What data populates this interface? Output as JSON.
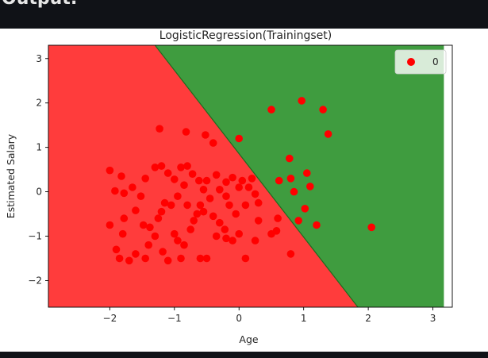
{
  "header": {
    "label": "Output:"
  },
  "chart_data": {
    "type": "scatter",
    "title": "LogisticRegression(Trainingset)",
    "xlabel": "Age",
    "ylabel": "Estimated Salary",
    "xlim": [
      -2.95,
      3.3
    ],
    "ylim": [
      -2.6,
      3.3
    ],
    "xticks": [
      -2,
      -1,
      0,
      1,
      2,
      3
    ],
    "yticks": [
      -2,
      -1,
      0,
      1,
      2,
      3
    ],
    "xtick_labels": [
      "−2",
      "−1",
      "0",
      "1",
      "2",
      "3"
    ],
    "ytick_labels": [
      "−2",
      "−1",
      "0",
      "1",
      "2",
      "3"
    ],
    "grid": false,
    "legend_position": "top-right",
    "decision_regions": {
      "class_0_color": "#ff3c3c",
      "class_1_color": "#3f9c3f",
      "boundary": [
        [
          -1.3,
          3.3
        ],
        [
          1.84,
          -2.6
        ]
      ],
      "green_extent_xmax": 3.17
    },
    "series": [
      {
        "name": "0",
        "color": "#ff0000",
        "points": [
          [
            2.05,
            -0.8
          ],
          [
            0.97,
            2.05
          ],
          [
            1.3,
            1.85
          ],
          [
            0.5,
            1.85
          ],
          [
            1.38,
            1.3
          ],
          [
            0.0,
            1.2
          ],
          [
            -1.23,
            1.42
          ],
          [
            -0.82,
            1.35
          ],
          [
            -0.52,
            1.28
          ],
          [
            -0.4,
            1.1
          ],
          [
            0.78,
            0.75
          ],
          [
            1.05,
            0.42
          ],
          [
            0.62,
            0.25
          ],
          [
            0.8,
            0.3
          ],
          [
            1.1,
            0.12
          ],
          [
            0.85,
            0.0
          ],
          [
            1.02,
            -0.38
          ],
          [
            0.92,
            -0.65
          ],
          [
            1.2,
            -0.75
          ],
          [
            0.58,
            -0.88
          ],
          [
            0.8,
            -1.4
          ],
          [
            -2.0,
            0.48
          ],
          [
            -1.82,
            0.35
          ],
          [
            -1.92,
            0.02
          ],
          [
            -1.78,
            -0.03
          ],
          [
            -1.65,
            0.1
          ],
          [
            -1.45,
            0.3
          ],
          [
            -1.52,
            -0.1
          ],
          [
            -1.6,
            -0.42
          ],
          [
            -1.78,
            -0.6
          ],
          [
            -2.0,
            -0.75
          ],
          [
            -1.8,
            -0.95
          ],
          [
            -1.9,
            -1.3
          ],
          [
            -1.85,
            -1.5
          ],
          [
            -1.6,
            -1.4
          ],
          [
            -1.7,
            -1.55
          ],
          [
            -1.48,
            -0.75
          ],
          [
            -1.38,
            -0.8
          ],
          [
            -1.4,
            -1.2
          ],
          [
            -1.45,
            -1.5
          ],
          [
            -1.3,
            -1.0
          ],
          [
            -1.18,
            -1.35
          ],
          [
            -1.1,
            -1.55
          ],
          [
            -1.2,
            -0.45
          ],
          [
            -1.15,
            -0.25
          ],
          [
            -1.3,
            0.55
          ],
          [
            -1.2,
            0.58
          ],
          [
            -1.1,
            0.42
          ],
          [
            -1.0,
            0.28
          ],
          [
            -0.9,
            0.55
          ],
          [
            -0.8,
            0.58
          ],
          [
            -0.72,
            0.4
          ],
          [
            -0.62,
            0.25
          ],
          [
            -0.55,
            0.05
          ],
          [
            -0.5,
            0.25
          ],
          [
            -1.0,
            -0.95
          ],
          [
            -0.95,
            -1.1
          ],
          [
            -0.9,
            -1.5
          ],
          [
            -0.85,
            -1.2
          ],
          [
            -0.7,
            -0.65
          ],
          [
            -0.65,
            -0.5
          ],
          [
            -0.6,
            -0.3
          ],
          [
            -0.8,
            -0.3
          ],
          [
            -0.6,
            -1.5
          ],
          [
            -0.5,
            -1.5
          ],
          [
            -0.4,
            -0.55
          ],
          [
            -0.35,
            -1.0
          ],
          [
            -0.3,
            -0.7
          ],
          [
            -0.22,
            -0.85
          ],
          [
            -0.3,
            0.05
          ],
          [
            -0.2,
            0.22
          ],
          [
            -0.1,
            0.32
          ],
          [
            -0.2,
            -0.1
          ],
          [
            -0.15,
            -0.3
          ],
          [
            -0.05,
            -0.5
          ],
          [
            0.0,
            0.1
          ],
          [
            0.05,
            0.25
          ],
          [
            0.1,
            -0.3
          ],
          [
            0.15,
            0.1
          ],
          [
            0.2,
            0.3
          ],
          [
            0.25,
            -0.05
          ],
          [
            0.3,
            -0.25
          ],
          [
            0.0,
            -0.95
          ],
          [
            -0.1,
            -1.1
          ],
          [
            -0.2,
            -1.05
          ],
          [
            0.3,
            -0.65
          ],
          [
            0.25,
            -1.1
          ],
          [
            0.1,
            -1.5
          ],
          [
            0.5,
            -0.95
          ],
          [
            0.6,
            -0.6
          ],
          [
            -0.85,
            0.15
          ],
          [
            -0.95,
            -0.1
          ],
          [
            -1.05,
            -0.3
          ],
          [
            -0.75,
            -0.85
          ],
          [
            -1.25,
            -0.6
          ],
          [
            -0.45,
            -0.15
          ],
          [
            -0.55,
            -0.45
          ],
          [
            -0.35,
            0.38
          ]
        ]
      }
    ]
  }
}
